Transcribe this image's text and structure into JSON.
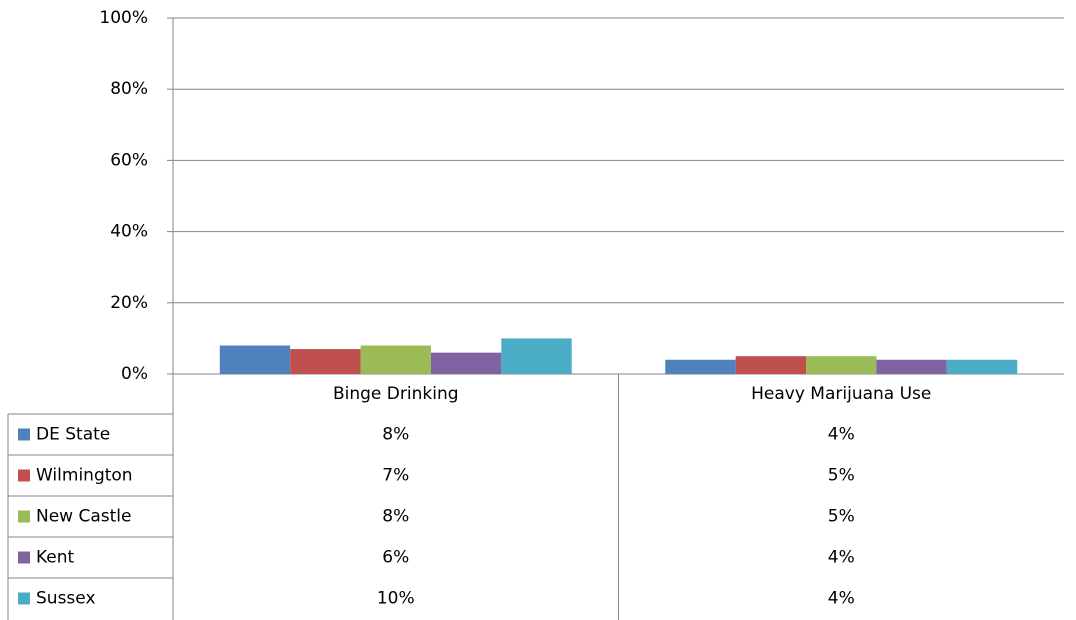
{
  "chart_data": {
    "type": "bar",
    "categories": [
      "Binge Drinking",
      "Heavy Marijuana Use"
    ],
    "series": [
      {
        "name": "DE State",
        "color": "#4f81bd",
        "values": [
          8,
          4
        ],
        "value_labels": [
          "8%",
          "4%"
        ]
      },
      {
        "name": "Wilmington",
        "color": "#c0504d",
        "values": [
          7,
          5
        ],
        "value_labels": [
          "7%",
          "5%"
        ]
      },
      {
        "name": "New Castle",
        "color": "#9bbb59",
        "values": [
          8,
          5
        ],
        "value_labels": [
          "8%",
          "5%"
        ]
      },
      {
        "name": "Kent",
        "color": "#8064a2",
        "values": [
          6,
          4
        ],
        "value_labels": [
          "6%",
          "4%"
        ]
      },
      {
        "name": "Sussex",
        "color": "#4bacc6",
        "values": [
          10,
          4
        ],
        "value_labels": [
          "10%",
          "4%"
        ]
      }
    ],
    "ylim": [
      0,
      100
    ],
    "yticks": [
      {
        "value": 0,
        "label": "0%"
      },
      {
        "value": 20,
        "label": "20%"
      },
      {
        "value": 40,
        "label": "40%"
      },
      {
        "value": 60,
        "label": "60%"
      },
      {
        "value": 80,
        "label": "80%"
      },
      {
        "value": 100,
        "label": "100%"
      }
    ],
    "grid": true,
    "legend": "table"
  }
}
